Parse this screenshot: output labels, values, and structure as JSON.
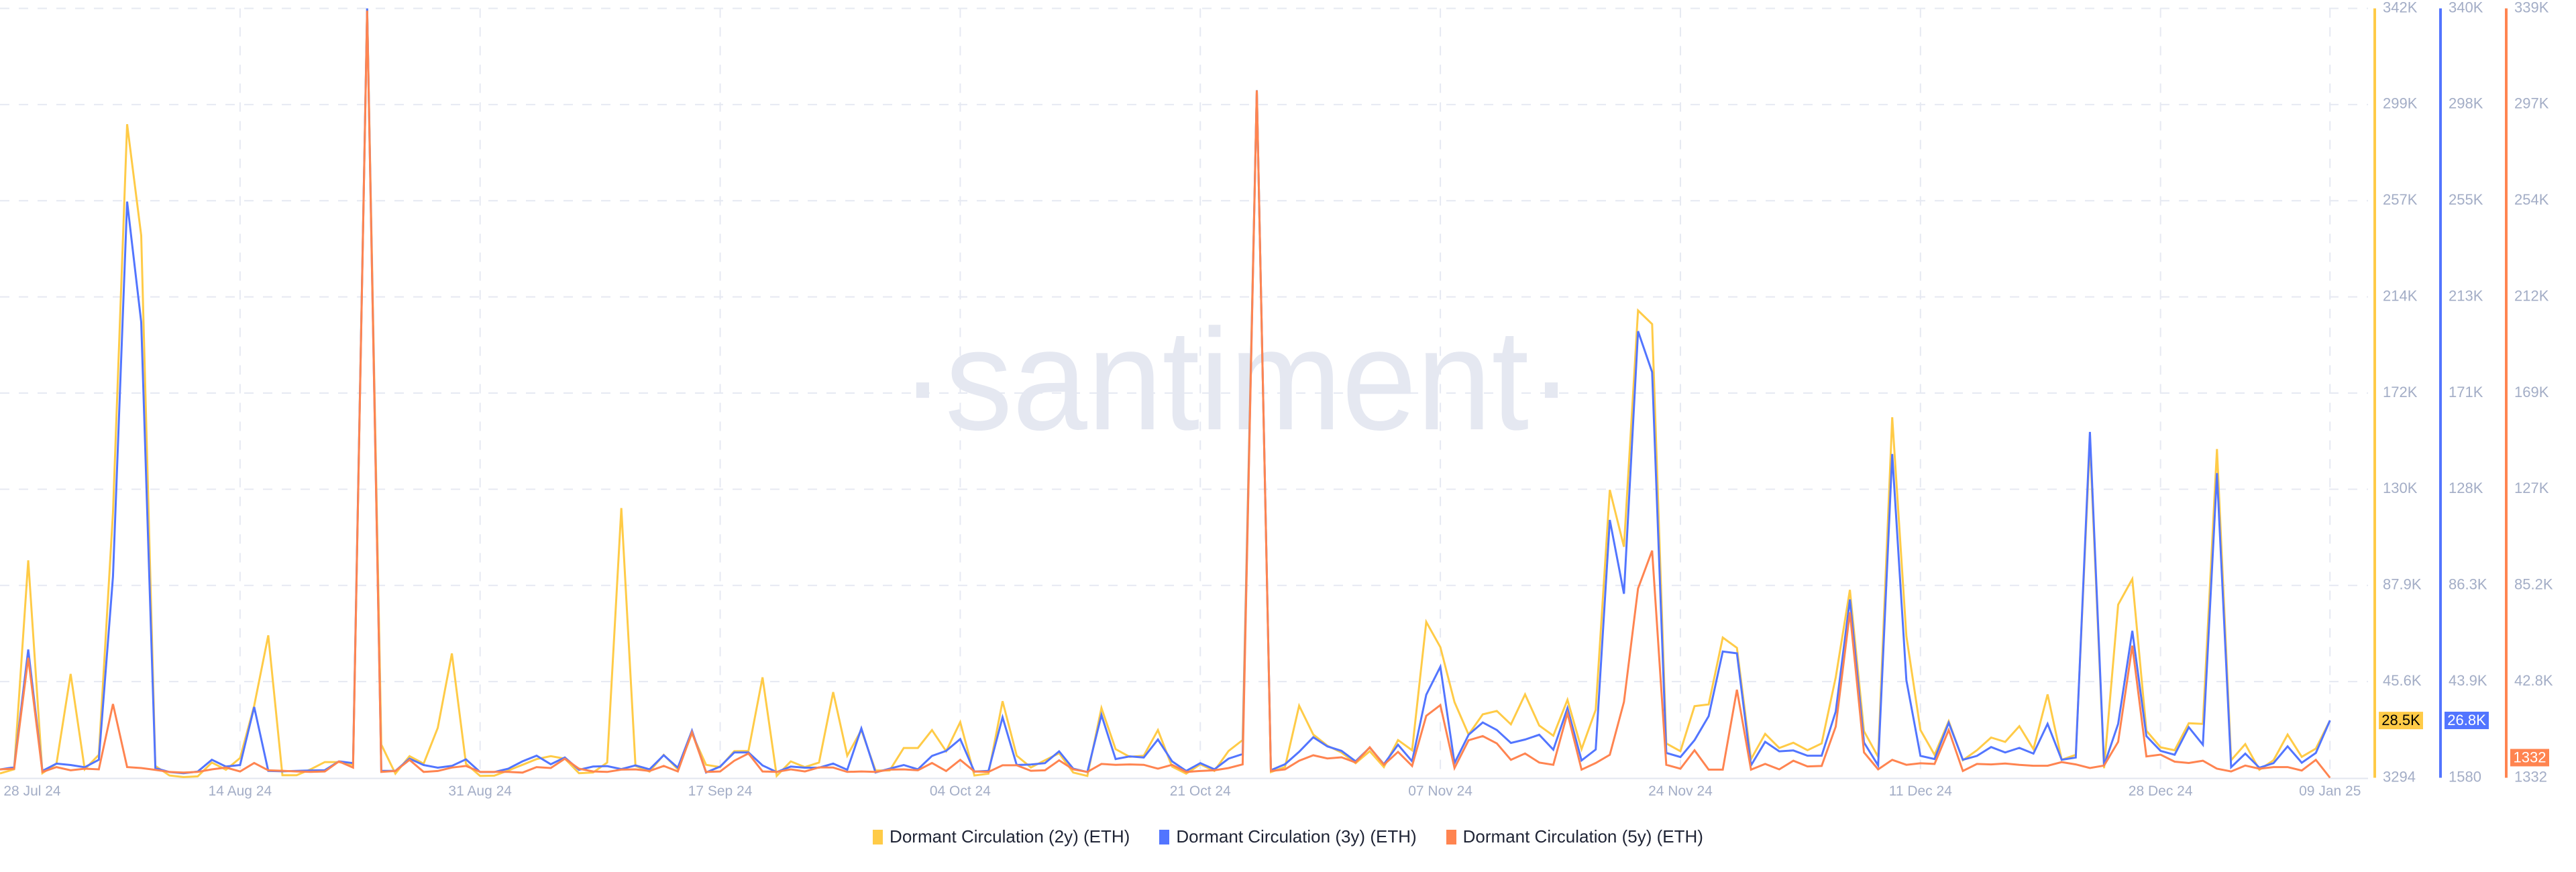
{
  "watermark": "·santiment·",
  "chart_data": {
    "type": "line",
    "grid": true,
    "legend": "bottom-center",
    "x": [
      "2024-07-28",
      "2024-07-29",
      "2024-07-30",
      "2024-07-31",
      "2024-08-01",
      "2024-08-02",
      "2024-08-03",
      "2024-08-04",
      "2024-08-05",
      "2024-08-06",
      "2024-08-07",
      "2024-08-08",
      "2024-08-09",
      "2024-08-10",
      "2024-08-11",
      "2024-08-12",
      "2024-08-13",
      "2024-08-14",
      "2024-08-15",
      "2024-08-16",
      "2024-08-17",
      "2024-08-18",
      "2024-08-19",
      "2024-08-20",
      "2024-08-21",
      "2024-08-22",
      "2024-08-23",
      "2024-08-24",
      "2024-08-25",
      "2024-08-26",
      "2024-08-27",
      "2024-08-28",
      "2024-08-29",
      "2024-08-30",
      "2024-08-31",
      "2024-09-01",
      "2024-09-02",
      "2024-09-03",
      "2024-09-04",
      "2024-09-05",
      "2024-09-06",
      "2024-09-07",
      "2024-09-08",
      "2024-09-09",
      "2024-09-10",
      "2024-09-11",
      "2024-09-12",
      "2024-09-13",
      "2024-09-14",
      "2024-09-15",
      "2024-09-16",
      "2024-09-17",
      "2024-09-18",
      "2024-09-19",
      "2024-09-20",
      "2024-09-21",
      "2024-09-22",
      "2024-09-23",
      "2024-09-24",
      "2024-09-25",
      "2024-09-26",
      "2024-09-27",
      "2024-09-28",
      "2024-09-29",
      "2024-09-30",
      "2024-10-01",
      "2024-10-02",
      "2024-10-03",
      "2024-10-04",
      "2024-10-05",
      "2024-10-06",
      "2024-10-07",
      "2024-10-08",
      "2024-10-09",
      "2024-10-10",
      "2024-10-11",
      "2024-10-12",
      "2024-10-13",
      "2024-10-14",
      "2024-10-15",
      "2024-10-16",
      "2024-10-17",
      "2024-10-18",
      "2024-10-19",
      "2024-10-20",
      "2024-10-21",
      "2024-10-22",
      "2024-10-23",
      "2024-10-24",
      "2024-10-25",
      "2024-10-26",
      "2024-10-27",
      "2024-10-28",
      "2024-10-29",
      "2024-10-30",
      "2024-10-31",
      "2024-11-01",
      "2024-11-02",
      "2024-11-03",
      "2024-11-04",
      "2024-11-05",
      "2024-11-06",
      "2024-11-07",
      "2024-11-08",
      "2024-11-09",
      "2024-11-10",
      "2024-11-11",
      "2024-11-12",
      "2024-11-13",
      "2024-11-14",
      "2024-11-15",
      "2024-11-16",
      "2024-11-17",
      "2024-11-18",
      "2024-11-19",
      "2024-11-20",
      "2024-11-21",
      "2024-11-22",
      "2024-11-23",
      "2024-11-24",
      "2024-11-25",
      "2024-11-26",
      "2024-11-27",
      "2024-11-28",
      "2024-11-29",
      "2024-11-30",
      "2024-12-01",
      "2024-12-02",
      "2024-12-03",
      "2024-12-04",
      "2024-12-05",
      "2024-12-06",
      "2024-12-07",
      "2024-12-08",
      "2024-12-09",
      "2024-12-10",
      "2024-12-11",
      "2024-12-12",
      "2024-12-13",
      "2024-12-14",
      "2024-12-15",
      "2024-12-16",
      "2024-12-17",
      "2024-12-18",
      "2024-12-19",
      "2024-12-20",
      "2024-12-21",
      "2024-12-22",
      "2024-12-23",
      "2024-12-24",
      "2024-12-25",
      "2024-12-26",
      "2024-12-27",
      "2024-12-28",
      "2024-12-29",
      "2024-12-30",
      "2024-12-31",
      "2025-01-01",
      "2025-01-02",
      "2025-01-03",
      "2025-01-04",
      "2025-01-05",
      "2025-01-06",
      "2025-01-07",
      "2025-01-08",
      "2025-01-09"
    ],
    "x_ticks": [
      {
        "date": "2024-07-28",
        "label": "28 Jul 24"
      },
      {
        "date": "2024-08-14",
        "label": "14 Aug 24"
      },
      {
        "date": "2024-08-31",
        "label": "31 Aug 24"
      },
      {
        "date": "2024-09-17",
        "label": "17 Sep 24"
      },
      {
        "date": "2024-10-04",
        "label": "04 Oct 24"
      },
      {
        "date": "2024-10-21",
        "label": "21 Oct 24"
      },
      {
        "date": "2024-11-07",
        "label": "07 Nov 24"
      },
      {
        "date": "2024-11-24",
        "label": "24 Nov 24"
      },
      {
        "date": "2024-12-11",
        "label": "11 Dec 24"
      },
      {
        "date": "2024-12-28",
        "label": "28 Dec 24"
      },
      {
        "date": "2025-01-09",
        "label": "09 Jan 25"
      }
    ],
    "series": [
      {
        "name": "Dormant Circulation (2y) (ETH)",
        "color": "#FFCB47",
        "badge_text_color": "#000000",
        "latest_label": "28.5K",
        "axis": {
          "min": 3294,
          "max": 342000,
          "ticks": [
            "3294",
            "45.6K",
            "87.9K",
            "130K",
            "172K",
            "214K",
            "257K",
            "299K",
            "342K"
          ]
        },
        "values": [
          5200,
          7000,
          99000,
          5300,
          9500,
          49000,
          7000,
          13400,
          120000,
          291000,
          242000,
          8500,
          4300,
          3600,
          3900,
          10000,
          6800,
          12000,
          35000,
          66000,
          4400,
          4400,
          7000,
          10200,
          10200,
          9000,
          342000,
          17900,
          5100,
          12800,
          9500,
          25300,
          58000,
          9500,
          4100,
          4200,
          6500,
          9000,
          11500,
          12800,
          11700,
          5300,
          5600,
          10000,
          122000,
          8500,
          6000,
          13400,
          7000,
          22800,
          9000,
          8000,
          15000,
          15100,
          47500,
          4100,
          10500,
          8000,
          10000,
          41000,
          13000,
          24300,
          6500,
          6500,
          16400,
          16400,
          24300,
          15000,
          27800,
          4300,
          5100,
          37000,
          13000,
          7800,
          11000,
          14100,
          5600,
          4100,
          34000,
          15900,
          12500,
          13000,
          24300,
          8200,
          5100,
          9200,
          6300,
          15100,
          19900,
          306000,
          5800,
          8000,
          35000,
          22300,
          17400,
          14400,
          9700,
          15000,
          8000,
          19900,
          15400,
          71900,
          60800,
          36600,
          22300,
          31200,
          32700,
          26800,
          40000,
          26300,
          21800,
          37600,
          15900,
          33200,
          130000,
          105000,
          209000,
          203000,
          18400,
          15000,
          34800,
          35600,
          65000,
          60500,
          11500,
          22600,
          16400,
          18700,
          15400,
          18400,
          47500,
          86000,
          23800,
          12500,
          162000,
          65700,
          24300,
          13400,
          28200,
          11000,
          15400,
          21000,
          19100,
          26000,
          15900,
          40000,
          11200,
          13400,
          151000,
          7500,
          79500,
          90800,
          24000,
          16700,
          15400,
          27300,
          27000,
          148000,
          11000,
          18100,
          6800,
          11000,
          22300,
          12500,
          16100,
          28500
        ]
      },
      {
        "name": "Dormant Circulation (3y) (ETH)",
        "color": "#5275FF",
        "badge_text_color": "#ffffff",
        "latest_label": "26.8K",
        "axis": {
          "min": 1580,
          "max": 340000,
          "ticks": [
            "1580",
            "43.9K",
            "86.3K",
            "128K",
            "171K",
            "213K",
            "255K",
            "298K",
            "340K"
          ]
        },
        "values": [
          5200,
          6200,
          58000,
          4600,
          7800,
          7200,
          6200,
          9500,
          90000,
          255000,
          202000,
          5800,
          4100,
          3600,
          4300,
          9500,
          6500,
          7200,
          32700,
          4600,
          4400,
          4600,
          4800,
          4900,
          8800,
          8000,
          340000,
          4600,
          4600,
          10000,
          7200,
          6000,
          6800,
          9700,
          4100,
          4100,
          5600,
          8800,
          11300,
          7500,
          10500,
          5100,
          6500,
          6700,
          5400,
          7000,
          5300,
          11500,
          6000,
          22300,
          3900,
          6500,
          12700,
          12700,
          7000,
          4100,
          6500,
          6000,
          6000,
          7800,
          5100,
          23300,
          3900,
          5600,
          7200,
          5300,
          11200,
          13400,
          18600,
          4300,
          4600,
          28200,
          7200,
          7400,
          8000,
          13200,
          5600,
          4100,
          29200,
          9800,
          11000,
          10500,
          18400,
          8800,
          4600,
          8000,
          5300,
          10000,
          12000,
          304000,
          4900,
          7500,
          13000,
          19400,
          15400,
          13400,
          8800,
          14900,
          7500,
          16100,
          8800,
          38100,
          50400,
          8000,
          20500,
          25900,
          22600,
          16900,
          18400,
          20500,
          13900,
          32200,
          9200,
          14000,
          115000,
          82500,
          198000,
          180000,
          12500,
          10700,
          18100,
          28700,
          57100,
          56300,
          7000,
          17400,
          13200,
          13600,
          11300,
          11300,
          30700,
          80000,
          17100,
          7000,
          144000,
          44500,
          11200,
          9800,
          25800,
          9500,
          11200,
          15100,
          12700,
          14700,
          12200,
          25300,
          9500,
          10500,
          153700,
          7000,
          25300,
          66200,
          19900,
          13400,
          11700,
          23800,
          16100,
          135600,
          6200,
          12200,
          6000,
          8000,
          15400,
          8200,
          12500,
          26800
        ]
      },
      {
        "name": "Dormant Circulation (5y) (ETH)",
        "color": "#FF8450",
        "badge_text_color": "#ffffff",
        "latest_label": "1332",
        "axis": {
          "min": 1332,
          "max": 339000,
          "ticks": [
            "1332",
            "42.8K",
            "85.2K",
            "127K",
            "169K",
            "212K",
            "254K",
            "297K",
            "339K"
          ]
        },
        "values": [
          5000,
          5300,
          54000,
          3900,
          6000,
          4600,
          5300,
          5000,
          33700,
          6000,
          5600,
          4800,
          3900,
          3600,
          3900,
          5000,
          5800,
          4100,
          7800,
          4600,
          4400,
          4100,
          3900,
          4100,
          8500,
          5800,
          338000,
          3900,
          4300,
          9200,
          3900,
          4300,
          5800,
          6500,
          3900,
          3900,
          3900,
          3600,
          6000,
          5600,
          9700,
          5300,
          4100,
          3900,
          4900,
          5000,
          4300,
          6500,
          4100,
          21300,
          3900,
          4100,
          8800,
          12000,
          4100,
          3900,
          5000,
          4100,
          5900,
          5800,
          3900,
          4100,
          3900,
          4900,
          5000,
          4600,
          7800,
          4300,
          9200,
          4100,
          3900,
          6800,
          6800,
          4400,
          4600,
          9000,
          5000,
          3900,
          7400,
          7000,
          7200,
          7000,
          5300,
          7000,
          3900,
          4300,
          4600,
          5600,
          7200,
          303000,
          4300,
          5000,
          8800,
          11200,
          9800,
          10300,
          8000,
          14700,
          7000,
          12700,
          6500,
          28500,
          33200,
          5600,
          17800,
          19600,
          16400,
          9200,
          12000,
          8000,
          7000,
          29700,
          4900,
          7800,
          11400,
          34600,
          84400,
          101000,
          7000,
          5300,
          13400,
          4900,
          4900,
          40000,
          4900,
          7400,
          5000,
          8800,
          6300,
          6500,
          23800,
          74000,
          12500,
          5000,
          9200,
          7000,
          7700,
          7400,
          22300,
          4300,
          7400,
          7200,
          7600,
          7000,
          6600,
          6600,
          8200,
          7200,
          5600,
          6700,
          17100,
          59300,
          10700,
          11500,
          8400,
          7800,
          8800,
          5300,
          4100,
          6700,
          5300,
          6000,
          6000,
          4500,
          9200,
          1332
        ]
      }
    ]
  }
}
